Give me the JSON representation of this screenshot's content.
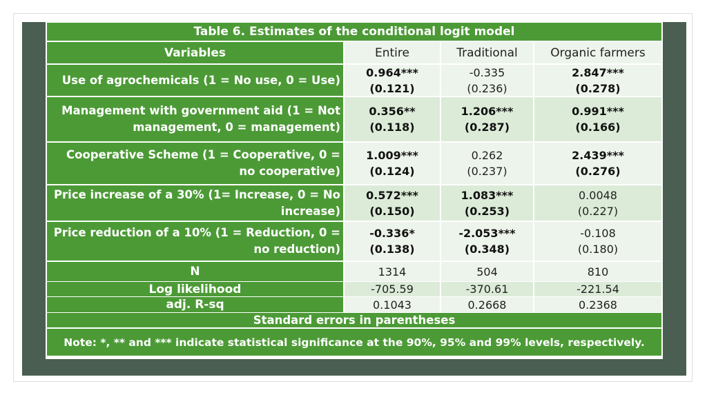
{
  "title": "Table 6. Estimates of the conditional logit model",
  "headers": [
    "Variables",
    "Entire",
    "Traditional",
    "Organic farmers"
  ],
  "rows": [
    {
      "var": [
        "Use of agrochemicals (1 = No use, 0 = Use)"
      ],
      "cells": [
        {
          "coef": "0.964***",
          "se": "(0.121)",
          "bold": true
        },
        {
          "coef": "-0.335",
          "se": "(0.236)",
          "bold": false
        },
        {
          "coef": "2.847***",
          "se": "(0.278)",
          "bold": true
        }
      ]
    },
    {
      "var": [
        "Management with government aid (1 = Not",
        "management, 0 = management)"
      ],
      "cells": [
        {
          "coef": "0.356**",
          "se": "(0.118)",
          "bold": true
        },
        {
          "coef": "1.206***",
          "se": "(0.287)",
          "bold": true
        },
        {
          "coef": "0.991***",
          "se": "(0.166)",
          "bold": true
        }
      ]
    },
    {
      "var": [
        "Cooperative Scheme (1 = Cooperative, 0 =",
        "no cooperative)"
      ],
      "cells": [
        {
          "coef": "1.009***",
          "se": "(0.124)",
          "bold": true
        },
        {
          "coef": "0.262",
          "se": "(0.237)",
          "bold": false
        },
        {
          "coef": "2.439***",
          "se": "(0.276)",
          "bold": true
        }
      ]
    },
    {
      "var": [
        "Price increase of a 30% (1= Increase, 0 = No",
        "increase)"
      ],
      "cells": [
        {
          "coef": "0.572***",
          "se": "(0.150)",
          "bold": true
        },
        {
          "coef": "1.083***",
          "se": "(0.253)",
          "bold": true
        },
        {
          "coef": "0.0048",
          "se": "(0.227)",
          "bold": false
        }
      ]
    },
    {
      "var": [
        "Price reduction of a 10%  (1 = Reduction, 0 =",
        "no reduction)"
      ],
      "cells": [
        {
          "coef": "-0.336*",
          "se": "(0.138)",
          "bold": true
        },
        {
          "coef": "-2.053***",
          "se": "(0.348)",
          "bold": true
        },
        {
          "coef": "-0.108",
          "se": "(0.180)",
          "bold": false
        }
      ]
    }
  ],
  "stats": [
    {
      "label": "N",
      "values": [
        "1314",
        "504",
        "810"
      ]
    },
    {
      "label": "Log likelihood",
      "values": [
        "-705.59",
        "-370.61",
        "-221.54"
      ]
    },
    {
      "label": "adj. R-sq",
      "values": [
        "0.1043",
        "0.2668",
        "0.2368"
      ]
    }
  ],
  "footnote_se": "Standard errors in parentheses",
  "note": "Note: *, ** and *** indicate statistical significance at the 90%, 95% and 99% levels, respectively."
}
